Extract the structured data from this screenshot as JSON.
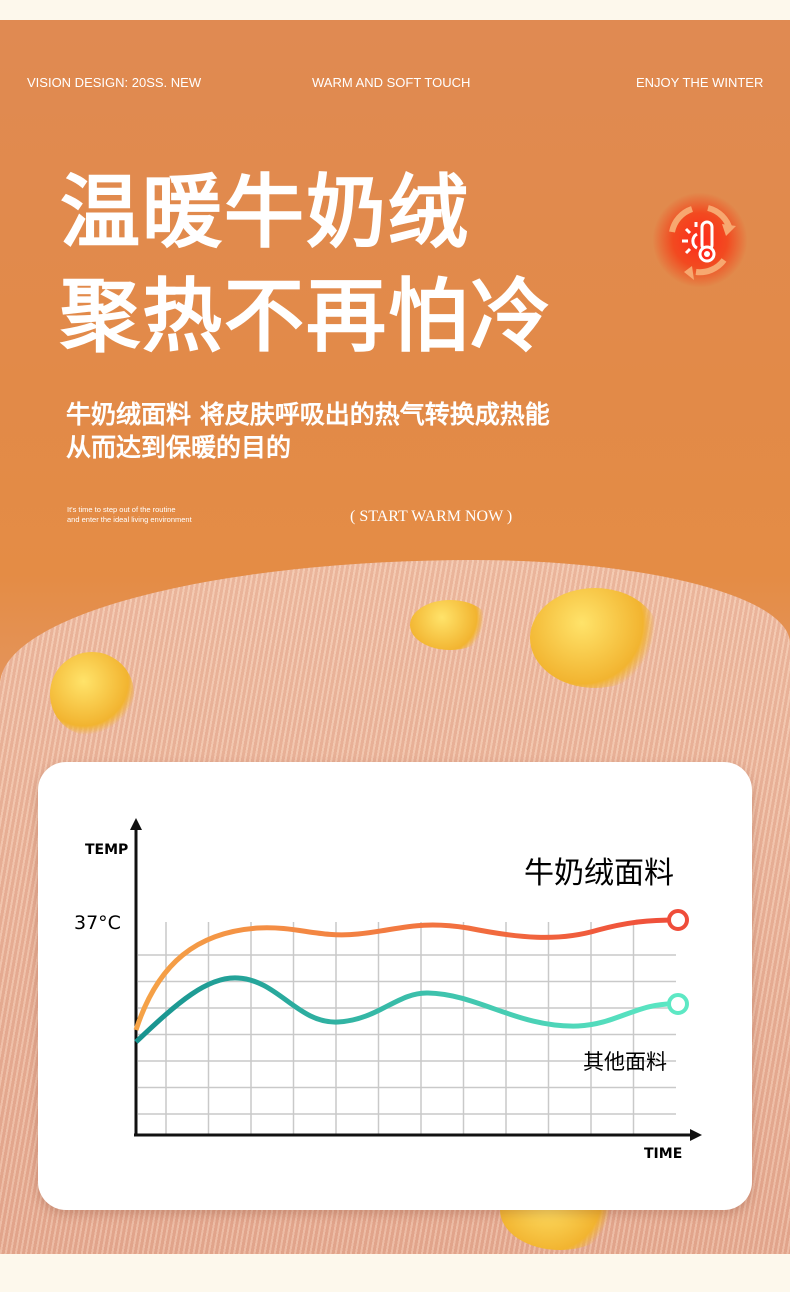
{
  "header": {
    "tag_left": "VISION DESIGN: 20SS. NEW",
    "tag_center": "WARM AND SOFT TOUCH",
    "tag_right": "ENJOY THE WINTER"
  },
  "headline": {
    "line1": "温暖牛奶绒",
    "line2": "聚热不再怕冷"
  },
  "subtitle": {
    "line1": "牛奶绒面料 将皮肤呼吸出的热气转换成热能",
    "line2": "从而达到保暖的目的"
  },
  "small_text": {
    "line1": "It's time to step out of the routine",
    "line2": "and enter the ideal living environment"
  },
  "cta": "( START WARM NOW )",
  "badge_icon": "thermometer-sun-cycle-icon",
  "chart": {
    "y_label": "TEMP",
    "x_label": "TIME",
    "marker": "37°C",
    "series": [
      {
        "name": "牛奶绒面料",
        "color": "#f06a3a"
      },
      {
        "name": "其他面料",
        "color": "#1fa59e"
      }
    ]
  },
  "colors": {
    "accent": "#e28a48",
    "badge": "#ff2a1a"
  }
}
